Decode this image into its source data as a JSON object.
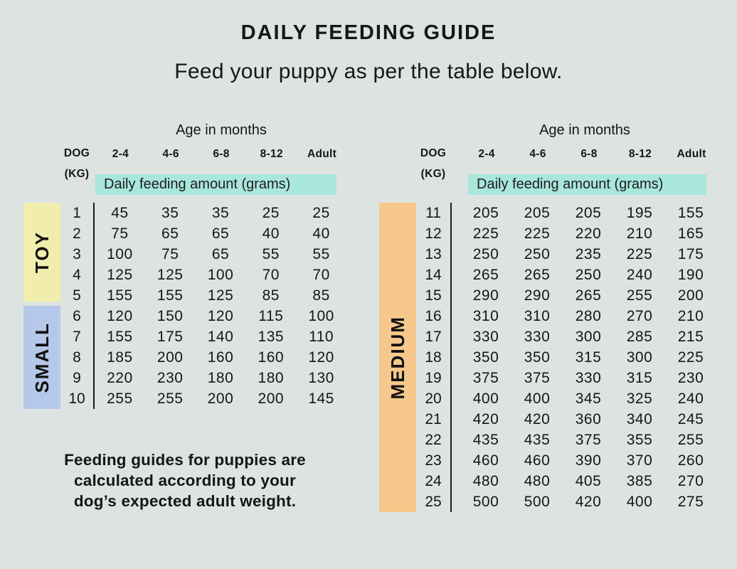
{
  "page": {
    "title": "DAILY FEEDING GUIDE",
    "subtitle": "Feed your puppy as per the table below.",
    "note_lines": [
      "Feeding guides for puppies are",
      "calculated according to your",
      "dog’s expected adult weight."
    ]
  },
  "colors": {
    "page_bg": "#dce3e1",
    "banner_bg": "#a9e6dc",
    "toy_band": "#f1eead",
    "small_band": "#b6c8e9",
    "medium_band": "#f6c88b",
    "text": "#161616"
  },
  "shared_headers": {
    "age_title": "Age in months",
    "dog_line1": "DOG",
    "dog_line2": "(KG)",
    "age_columns": [
      "2-4",
      "4-6",
      "6-8",
      "8-12",
      "Adult"
    ],
    "amount_banner": "Daily feeding amount (grams)"
  },
  "chart_data": [
    {
      "type": "table",
      "title": "Age in months",
      "row_axis_label": "DOG (KG)",
      "value_banner": "Daily feeding amount (grams)",
      "units": "grams",
      "columns": [
        "2-4",
        "4-6",
        "6-8",
        "8-12",
        "Adult"
      ],
      "groups": [
        {
          "label": "TOY",
          "band_color": "#f1eead",
          "rows": [
            [
              1,
              45,
              35,
              35,
              25,
              25
            ],
            [
              2,
              75,
              65,
              65,
              40,
              40
            ],
            [
              3,
              100,
              75,
              65,
              55,
              55
            ],
            [
              4,
              125,
              125,
              100,
              70,
              70
            ],
            [
              5,
              155,
              155,
              125,
              85,
              85
            ]
          ]
        },
        {
          "label": "SMALL",
          "band_color": "#b6c8e9",
          "rows": [
            [
              6,
              120,
              150,
              120,
              115,
              100
            ],
            [
              7,
              155,
              175,
              140,
              135,
              110
            ],
            [
              8,
              185,
              200,
              160,
              160,
              120
            ],
            [
              9,
              220,
              230,
              180,
              180,
              130
            ],
            [
              10,
              255,
              255,
              200,
              200,
              145
            ]
          ]
        }
      ]
    },
    {
      "type": "table",
      "title": "Age in months",
      "row_axis_label": "DOG (KG)",
      "value_banner": "Daily feeding amount (grams)",
      "units": "grams",
      "columns": [
        "2-4",
        "4-6",
        "6-8",
        "8-12",
        "Adult"
      ],
      "groups": [
        {
          "label": "MEDIUM",
          "band_color": "#f6c88b",
          "rows": [
            [
              11,
              205,
              205,
              205,
              195,
              155
            ],
            [
              12,
              225,
              225,
              220,
              210,
              165
            ],
            [
              13,
              250,
              250,
              235,
              225,
              175
            ],
            [
              14,
              265,
              265,
              250,
              240,
              190
            ],
            [
              15,
              290,
              290,
              265,
              255,
              200
            ],
            [
              16,
              310,
              310,
              280,
              270,
              210
            ],
            [
              17,
              330,
              330,
              300,
              285,
              215
            ],
            [
              18,
              350,
              350,
              315,
              300,
              225
            ],
            [
              19,
              375,
              375,
              330,
              315,
              230
            ],
            [
              20,
              400,
              400,
              345,
              325,
              240
            ],
            [
              21,
              420,
              420,
              360,
              340,
              245
            ],
            [
              22,
              435,
              435,
              375,
              355,
              255
            ],
            [
              23,
              460,
              460,
              390,
              370,
              260
            ],
            [
              24,
              480,
              480,
              405,
              385,
              270
            ],
            [
              25,
              500,
              500,
              420,
              400,
              275
            ]
          ]
        }
      ]
    }
  ]
}
